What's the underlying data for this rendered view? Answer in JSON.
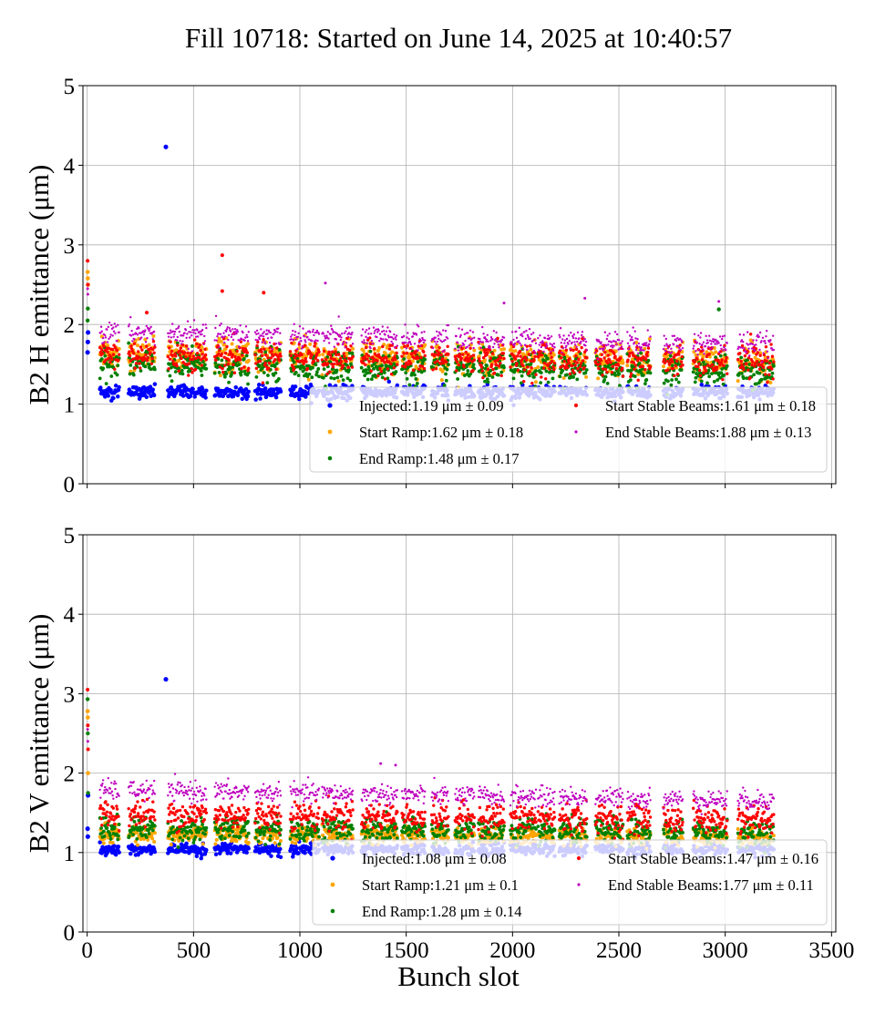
{
  "suptitle": "Fill 10718: Started on June 14, 2025 at 10:40:57",
  "chart_data": [
    {
      "type": "scatter",
      "title": "",
      "xlabel": "",
      "ylabel": "B2 H emittance (μm)",
      "xlim": [
        -20,
        3520
      ],
      "ylim": [
        0,
        5
      ],
      "xticks": [
        0,
        500,
        1000,
        1500,
        2000,
        2500,
        3000,
        3500
      ],
      "xtick_labels": [],
      "yticks": [
        0,
        1,
        2,
        3,
        4,
        5
      ],
      "ytick_labels": [
        "0",
        "1",
        "2",
        "3",
        "4",
        "5"
      ],
      "grid": true,
      "legend_position": "lower-right",
      "series": [
        {
          "name": "Injected",
          "label": "Injected:1.19 μm ± 0.09",
          "color": "#0000ff",
          "mean": 1.19,
          "std": 0.09,
          "outliers": [
            [
              370,
              4.23
            ],
            [
              2,
              1.65
            ],
            [
              3,
              1.78
            ],
            [
              4,
              1.9
            ]
          ]
        },
        {
          "name": "Start Ramp",
          "label": "Start Ramp:1.62 μm ± 0.18",
          "color": "#ffa500",
          "mean": 1.62,
          "std": 0.18,
          "outliers": [
            [
              2,
              2.66
            ],
            [
              3,
              2.58
            ],
            [
              4,
              2.5
            ]
          ]
        },
        {
          "name": "End Ramp",
          "label": "End Ramp:1.48 μm ± 0.17",
          "color": "#008000",
          "mean": 1.48,
          "std": 0.17,
          "outliers": [
            [
              2,
              2.05
            ],
            [
              3,
              2.2
            ],
            [
              2970,
              2.19
            ]
          ]
        },
        {
          "name": "Start Stable Beams",
          "label": "Start Stable Beams:1.61 μm ± 0.18",
          "color": "#ff0000",
          "mean": 1.61,
          "std": 0.18,
          "outliers": [
            [
              2,
              2.8
            ],
            [
              3,
              2.5
            ],
            [
              635,
              2.87
            ],
            [
              635,
              2.42
            ],
            [
              830,
              2.4
            ],
            [
              280,
              2.15
            ]
          ]
        },
        {
          "name": "End Stable Beams",
          "label": "End Stable Beams:1.88 μm ± 0.13",
          "color": "#bf00bf",
          "mean": 1.88,
          "std": 0.13,
          "outliers": [
            [
              2,
              2.45
            ],
            [
              3,
              2.38
            ],
            [
              1120,
              2.52
            ],
            [
              1960,
              2.27
            ],
            [
              2340,
              2.33
            ],
            [
              2970,
              2.29
            ]
          ]
        }
      ]
    },
    {
      "type": "scatter",
      "title": "",
      "xlabel": "Bunch slot",
      "ylabel": "B2 V emittance (μm)",
      "xlim": [
        -20,
        3520
      ],
      "ylim": [
        0,
        5
      ],
      "xticks": [
        0,
        500,
        1000,
        1500,
        2000,
        2500,
        3000,
        3500
      ],
      "xtick_labels": [
        "0",
        "500",
        "1000",
        "1500",
        "2000",
        "2500",
        "3000",
        "3500"
      ],
      "yticks": [
        0,
        1,
        2,
        3,
        4,
        5
      ],
      "ytick_labels": [
        "0",
        "1",
        "2",
        "3",
        "4",
        "5"
      ],
      "grid": true,
      "legend_position": "lower-right",
      "series": [
        {
          "name": "Injected",
          "label": "Injected:1.08 μm ± 0.08",
          "color": "#0000ff",
          "mean": 1.08,
          "std": 0.08,
          "outliers": [
            [
              370,
              3.18
            ],
            [
              2,
              1.3
            ],
            [
              3,
              1.2
            ],
            [
              4,
              1.72
            ]
          ]
        },
        {
          "name": "Start Ramp",
          "label": "Start Ramp:1.21 μm ± 0.1",
          "color": "#ffa500",
          "mean": 1.21,
          "std": 0.1,
          "outliers": [
            [
              2,
              2.78
            ],
            [
              3,
              2.7
            ],
            [
              4,
              2.0
            ]
          ]
        },
        {
          "name": "End Ramp",
          "label": "End Ramp:1.28 μm ± 0.14",
          "color": "#008000",
          "mean": 1.28,
          "std": 0.14,
          "outliers": [
            [
              2,
              2.93
            ],
            [
              3,
              2.5
            ],
            [
              4,
              1.75
            ]
          ]
        },
        {
          "name": "Start Stable Beams",
          "label": "Start Stable Beams:1.47 μm ± 0.16",
          "color": "#ff0000",
          "mean": 1.47,
          "std": 0.16,
          "outliers": [
            [
              2,
              3.05
            ],
            [
              3,
              2.6
            ],
            [
              4,
              2.3
            ]
          ]
        },
        {
          "name": "End Stable Beams",
          "label": "End Stable Beams:1.77 μm ± 0.11",
          "color": "#bf00bf",
          "mean": 1.77,
          "std": 0.11,
          "outliers": [
            [
              2,
              2.55
            ],
            [
              3,
              2.4
            ],
            [
              1380,
              2.12
            ],
            [
              1450,
              2.1
            ]
          ]
        }
      ]
    }
  ],
  "trains": [
    [
      60,
      150
    ],
    [
      195,
      320
    ],
    [
      380,
      560
    ],
    [
      600,
      760
    ],
    [
      790,
      910
    ],
    [
      955,
      1090
    ],
    [
      1105,
      1250
    ],
    [
      1290,
      1460
    ],
    [
      1480,
      1590
    ],
    [
      1620,
      1700
    ],
    [
      1730,
      1820
    ],
    [
      1840,
      1960
    ],
    [
      1990,
      2110
    ],
    [
      2120,
      2200
    ],
    [
      2220,
      2350
    ],
    [
      2390,
      2520
    ],
    [
      2540,
      2650
    ],
    [
      2710,
      2800
    ],
    [
      2850,
      3010
    ],
    [
      3060,
      3230
    ]
  ],
  "bunch_spacing": 3
}
